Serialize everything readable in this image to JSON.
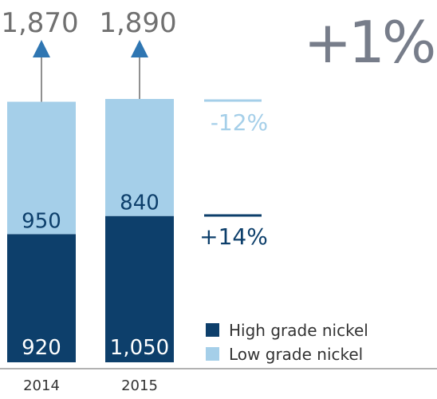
{
  "colors": {
    "high": "#0d3f6b",
    "low": "#a5cfe9",
    "total_text": "#707070",
    "big_change": "#777d8a",
    "arrow": "#2f76b2",
    "axis": "#666666",
    "white": "#ffffff"
  },
  "chart_data": {
    "type": "bar",
    "stacked": true,
    "categories": [
      "2014",
      "2015"
    ],
    "series": [
      {
        "name": "High grade nickel",
        "values": [
          920,
          1050
        ]
      },
      {
        "name": "Low grade nickel",
        "values": [
          950,
          840
        ]
      }
    ],
    "totals": [
      "1,870",
      "1,890"
    ],
    "value_labels": {
      "high": [
        "920",
        "1,050"
      ],
      "low": [
        "950",
        "840"
      ]
    },
    "total_change": "+1%",
    "changes": {
      "low": "-12%",
      "high": "+14%"
    },
    "legend": [
      "High grade nickel",
      "Low grade nickel"
    ],
    "legend_position": "bottom-right",
    "ylim": [
      0,
      2400
    ],
    "grid": false
  }
}
